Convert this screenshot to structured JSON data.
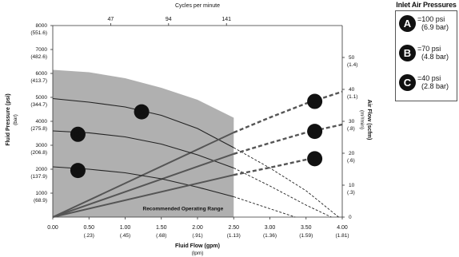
{
  "chart_data": {
    "type": "line",
    "title": "",
    "top_axis": {
      "label": "Cycles per minute",
      "ticks": [
        {
          "x": 0.8,
          "label": "47"
        },
        {
          "x": 1.6,
          "label": "94"
        },
        {
          "x": 2.4,
          "label": "141"
        }
      ]
    },
    "x_axis": {
      "label": "Fluid Flow (gpm)",
      "unit_label": "(lpm)",
      "range": [
        0,
        4.0
      ],
      "ticks": [
        {
          "value": 0,
          "label": "0.00",
          "sub": ""
        },
        {
          "value": 0.5,
          "label": "0.50",
          "sub": "(.23)"
        },
        {
          "value": 1.0,
          "label": "1.00",
          "sub": "(.45)"
        },
        {
          "value": 1.5,
          "label": "1.50",
          "sub": "(.68)"
        },
        {
          "value": 2.0,
          "label": "2.00",
          "sub": "(.91)"
        },
        {
          "value": 2.5,
          "label": "2.50",
          "sub": "(1.13)"
        },
        {
          "value": 3.0,
          "label": "3.00",
          "sub": "(1.36)"
        },
        {
          "value": 3.5,
          "label": "3.50",
          "sub": "(1.59)"
        },
        {
          "value": 4.0,
          "label": "4.00",
          "sub": "(1.81)"
        }
      ]
    },
    "y_left": {
      "label": "Fluid Pressure (psi)",
      "unit_label": "(bar)",
      "range": [
        0,
        8000
      ],
      "ticks": [
        {
          "value": 1000,
          "label": "1000",
          "sub": "(68.9)"
        },
        {
          "value": 2000,
          "label": "2000",
          "sub": "(137.9)"
        },
        {
          "value": 3000,
          "label": "3000",
          "sub": "(206.8)"
        },
        {
          "value": 4000,
          "label": "4000",
          "sub": "(275.8)"
        },
        {
          "value": 5000,
          "label": "5000",
          "sub": "(344.7)"
        },
        {
          "value": 6000,
          "label": "6000",
          "sub": "(413.7)"
        },
        {
          "value": 7000,
          "label": "7000",
          "sub": "(482.6)"
        },
        {
          "value": 8000,
          "label": "8000",
          "sub": "(551.6)"
        }
      ]
    },
    "y_right": {
      "label": "Air Flow (scfm)",
      "unit_label": "(m³/min)",
      "range": [
        0,
        60
      ],
      "ticks": [
        {
          "value": 0,
          "label": "0",
          "sub": ""
        },
        {
          "value": 10,
          "label": "10",
          "sub": "(.3)"
        },
        {
          "value": 20,
          "label": "20",
          "sub": "(.6)"
        },
        {
          "value": 30,
          "label": "30",
          "sub": "(.8)"
        },
        {
          "value": 40,
          "label": "40",
          "sub": "(1.1)"
        },
        {
          "value": 50,
          "label": "50",
          "sub": "(1.4)"
        }
      ]
    },
    "recommended_region": {
      "label": "Recommended Operating Range",
      "x_max": 2.5,
      "top_boundary": [
        [
          0,
          6150
        ],
        [
          0.5,
          6050
        ],
        [
          1.0,
          5800
        ],
        [
          1.5,
          5400
        ],
        [
          2.0,
          4900
        ],
        [
          2.5,
          4150
        ]
      ]
    },
    "series": [
      {
        "name": "A",
        "pressure_solid": [
          [
            0,
            4950
          ],
          [
            0.5,
            4800
          ],
          [
            1.0,
            4600
          ],
          [
            1.5,
            4250
          ],
          [
            2.0,
            3700
          ],
          [
            2.5,
            2900
          ]
        ],
        "pressure_dashed": [
          [
            2.5,
            2900
          ],
          [
            3.0,
            2050
          ],
          [
            3.5,
            1100
          ],
          [
            3.95,
            0
          ]
        ],
        "airflow_solid": [
          [
            0,
            0
          ],
          [
            2.5,
            26.5
          ]
        ],
        "airflow_dashed": [
          [
            2.5,
            26.5
          ],
          [
            3.0,
            31.2
          ],
          [
            3.5,
            35.6
          ],
          [
            4.0,
            39.3
          ]
        ]
      },
      {
        "name": "B",
        "pressure_solid": [
          [
            0,
            3600
          ],
          [
            0.5,
            3520
          ],
          [
            1.0,
            3350
          ],
          [
            1.5,
            3050
          ],
          [
            2.0,
            2600
          ],
          [
            2.5,
            2050
          ]
        ],
        "pressure_dashed": [
          [
            2.5,
            2050
          ],
          [
            3.0,
            1300
          ],
          [
            3.5,
            500
          ],
          [
            3.85,
            0
          ]
        ],
        "airflow_solid": [
          [
            0,
            0
          ],
          [
            2.5,
            19.8
          ]
        ],
        "airflow_dashed": [
          [
            2.5,
            19.8
          ],
          [
            3.0,
            23.2
          ],
          [
            3.5,
            26.5
          ],
          [
            4.0,
            29.0
          ]
        ]
      },
      {
        "name": "C",
        "pressure_solid": [
          [
            0,
            2100
          ],
          [
            0.5,
            2000
          ],
          [
            1.0,
            1850
          ],
          [
            1.5,
            1600
          ],
          [
            2.0,
            1250
          ],
          [
            2.5,
            850
          ]
        ],
        "pressure_dashed": [
          [
            2.5,
            850
          ],
          [
            3.0,
            350
          ],
          [
            3.35,
            0
          ]
        ],
        "airflow_solid": [
          [
            0,
            0
          ],
          [
            2.5,
            13.2
          ]
        ],
        "airflow_dashed": [
          [
            2.5,
            13.2
          ],
          [
            3.0,
            15.5
          ],
          [
            3.5,
            18.0
          ],
          [
            3.7,
            18.9
          ]
        ]
      }
    ],
    "legend": {
      "title": "Inlet Air Pressures",
      "placement": "top-right",
      "items": [
        {
          "name": "A",
          "line1": "=100 psi",
          "line2": "(6.9 bar)"
        },
        {
          "name": "B",
          "line1": "=70 psi",
          "line2": "(4.8 bar)"
        },
        {
          "name": "C",
          "line1": "=40 psi",
          "line2": "(2.8 bar)"
        }
      ]
    },
    "colors": {
      "region": "#b0b0b0",
      "pressure_line": "#222222",
      "airflow_line": "#555555",
      "badge": "#111111"
    }
  }
}
